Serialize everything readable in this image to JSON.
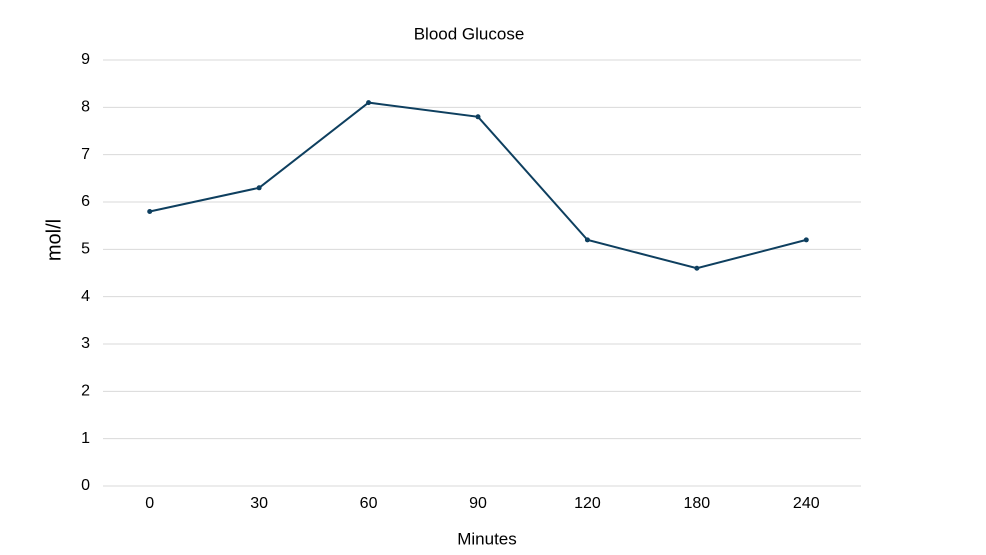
{
  "chart_data": {
    "type": "line",
    "title": "Blood Glucose",
    "x_label": "Minutes",
    "y_label": "mol/l",
    "categories": [
      "0",
      "30",
      "60",
      "90",
      "120",
      "180",
      "240"
    ],
    "values": [
      5.8,
      6.3,
      8.1,
      7.8,
      5.2,
      4.6,
      5.2
    ],
    "color": "#0e3f5f",
    "ylim": [
      0,
      9
    ],
    "yticks": [
      0,
      1,
      2,
      3,
      4,
      5,
      6,
      7,
      8,
      9
    ],
    "grid": true
  }
}
